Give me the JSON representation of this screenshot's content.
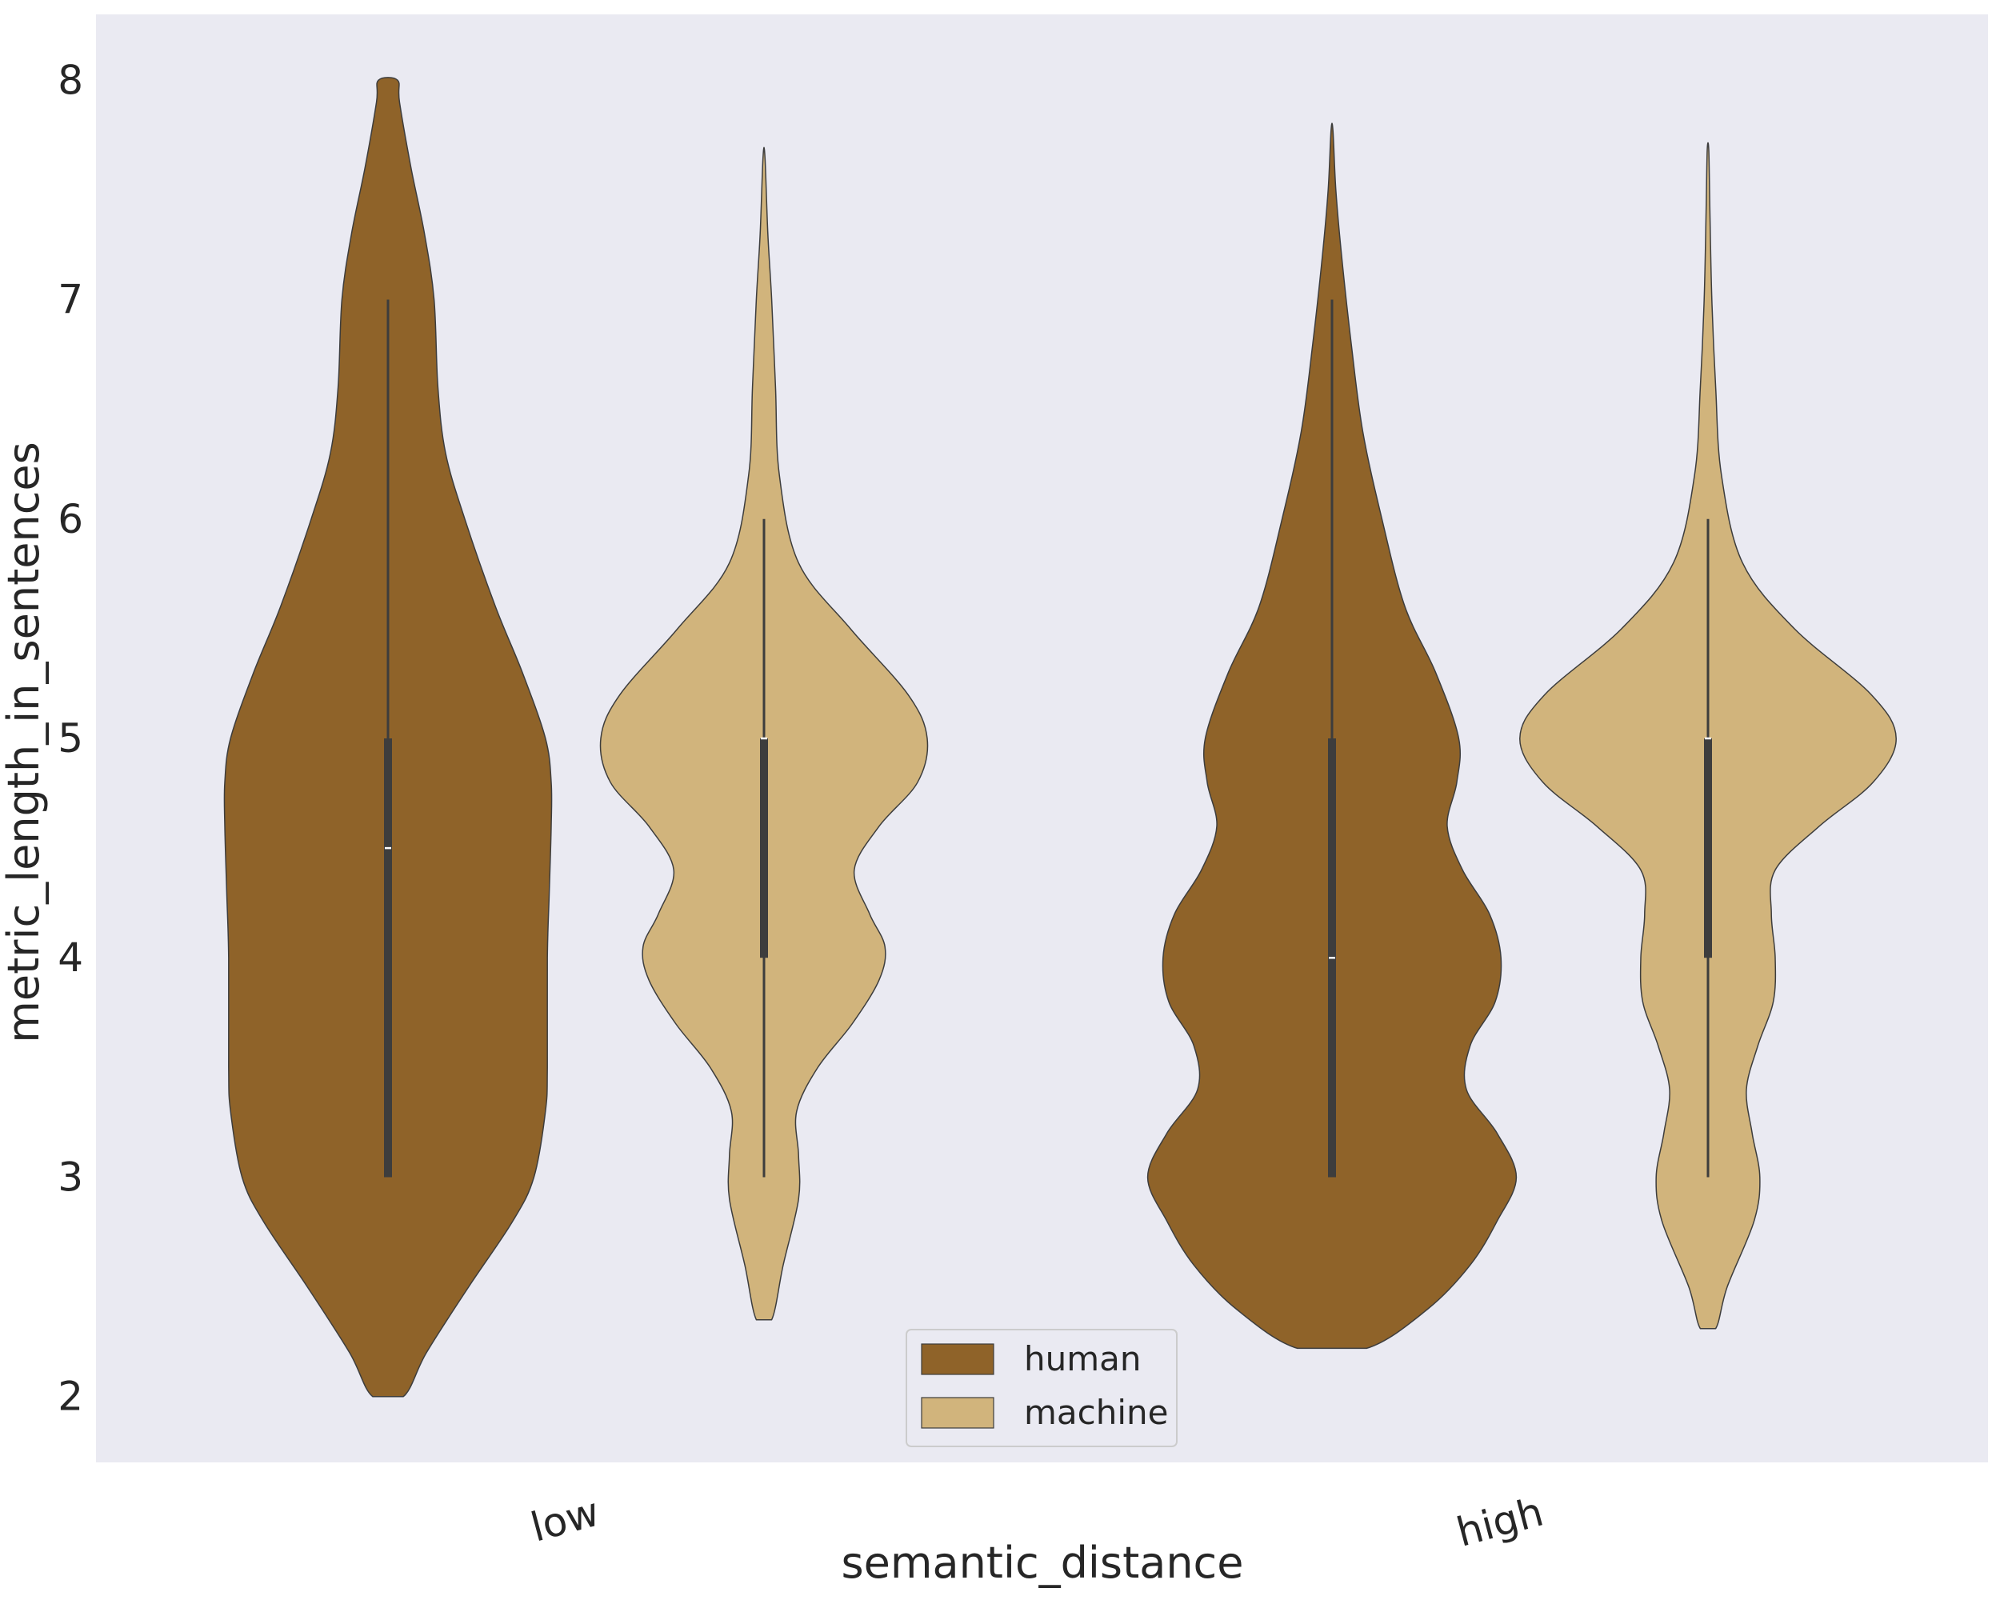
{
  "chart_data": {
    "type": "violin",
    "title": "",
    "xlabel": "semantic_distance",
    "ylabel": "metric_length_in_sentences",
    "categories": [
      "low",
      "high"
    ],
    "ylim": [
      1.7,
      8.3
    ],
    "yticks": [
      2,
      3,
      4,
      5,
      6,
      7,
      8
    ],
    "grid": false,
    "background": "#eaeaf2",
    "legend_position": "bottom-center",
    "series": [
      {
        "name": "human",
        "color": "#8f6329",
        "violins": [
          {
            "category": "low",
            "min": 3,
            "q1": 3,
            "median": 4.5,
            "q3": 5,
            "max": 7,
            "density_range": [
              2.0,
              8.0
            ],
            "density": [
              [
                2.0,
                0.08
              ],
              [
                2.2,
                0.2
              ],
              [
                2.5,
                0.42
              ],
              [
                2.8,
                0.65
              ],
              [
                3.0,
                0.76
              ],
              [
                3.3,
                0.82
              ],
              [
                3.5,
                0.83
              ],
              [
                4.0,
                0.83
              ],
              [
                4.3,
                0.84
              ],
              [
                4.6,
                0.85
              ],
              [
                4.8,
                0.85
              ],
              [
                5.0,
                0.82
              ],
              [
                5.3,
                0.7
              ],
              [
                5.6,
                0.56
              ],
              [
                6.0,
                0.4
              ],
              [
                6.3,
                0.3
              ],
              [
                6.6,
                0.26
              ],
              [
                7.0,
                0.24
              ],
              [
                7.3,
                0.19
              ],
              [
                7.6,
                0.12
              ],
              [
                7.9,
                0.06
              ],
              [
                8.0,
                0.05
              ]
            ]
          },
          {
            "category": "high",
            "min": 3,
            "q1": 3,
            "median": 4,
            "q3": 5,
            "max": 7,
            "density_range": [
              2.22,
              7.77
            ],
            "density": [
              [
                2.22,
                0.18
              ],
              [
                2.4,
                0.5
              ],
              [
                2.6,
                0.72
              ],
              [
                2.8,
                0.86
              ],
              [
                3.0,
                0.96
              ],
              [
                3.2,
                0.86
              ],
              [
                3.4,
                0.7
              ],
              [
                3.6,
                0.72
              ],
              [
                3.8,
                0.85
              ],
              [
                4.0,
                0.88
              ],
              [
                4.2,
                0.82
              ],
              [
                4.4,
                0.68
              ],
              [
                4.6,
                0.6
              ],
              [
                4.8,
                0.65
              ],
              [
                5.0,
                0.66
              ],
              [
                5.3,
                0.54
              ],
              [
                5.6,
                0.38
              ],
              [
                6.0,
                0.26
              ],
              [
                6.4,
                0.16
              ],
              [
                6.8,
                0.1
              ],
              [
                7.2,
                0.05
              ],
              [
                7.5,
                0.02
              ],
              [
                7.77,
                0.005
              ]
            ]
          }
        ]
      },
      {
        "name": "machine",
        "color": "#d1b47c",
        "violins": [
          {
            "category": "low",
            "min": 3,
            "q1": 4,
            "median": 5,
            "q3": 5,
            "max": 6,
            "density_range": [
              2.35,
              7.65
            ],
            "density": [
              [
                2.35,
                0.04
              ],
              [
                2.6,
                0.1
              ],
              [
                2.9,
                0.18
              ],
              [
                3.1,
                0.18
              ],
              [
                3.3,
                0.17
              ],
              [
                3.5,
                0.28
              ],
              [
                3.7,
                0.46
              ],
              [
                3.9,
                0.6
              ],
              [
                4.05,
                0.63
              ],
              [
                4.2,
                0.55
              ],
              [
                4.4,
                0.47
              ],
              [
                4.6,
                0.6
              ],
              [
                4.8,
                0.8
              ],
              [
                5.0,
                0.85
              ],
              [
                5.2,
                0.75
              ],
              [
                5.5,
                0.45
              ],
              [
                5.8,
                0.18
              ],
              [
                6.2,
                0.08
              ],
              [
                6.6,
                0.06
              ],
              [
                7.0,
                0.04
              ],
              [
                7.3,
                0.02
              ],
              [
                7.65,
                0.005
              ]
            ]
          },
          {
            "category": "high",
            "min": 3,
            "q1": 4,
            "median": 5,
            "q3": 5,
            "max": 6,
            "density_range": [
              2.31,
              7.68
            ],
            "density": [
              [
                2.31,
                0.04
              ],
              [
                2.5,
                0.1
              ],
              [
                2.8,
                0.24
              ],
              [
                3.0,
                0.27
              ],
              [
                3.2,
                0.23
              ],
              [
                3.4,
                0.2
              ],
              [
                3.6,
                0.26
              ],
              [
                3.8,
                0.34
              ],
              [
                4.0,
                0.35
              ],
              [
                4.2,
                0.33
              ],
              [
                4.4,
                0.35
              ],
              [
                4.6,
                0.58
              ],
              [
                4.8,
                0.86
              ],
              [
                5.0,
                0.98
              ],
              [
                5.2,
                0.85
              ],
              [
                5.5,
                0.45
              ],
              [
                5.8,
                0.18
              ],
              [
                6.2,
                0.07
              ],
              [
                6.6,
                0.04
              ],
              [
                7.0,
                0.02
              ],
              [
                7.4,
                0.01
              ],
              [
                7.68,
                0.004
              ]
            ]
          }
        ]
      }
    ],
    "legend": [
      {
        "label": "human",
        "color": "#8f6329"
      },
      {
        "label": "machine",
        "color": "#d1b47c"
      }
    ]
  }
}
